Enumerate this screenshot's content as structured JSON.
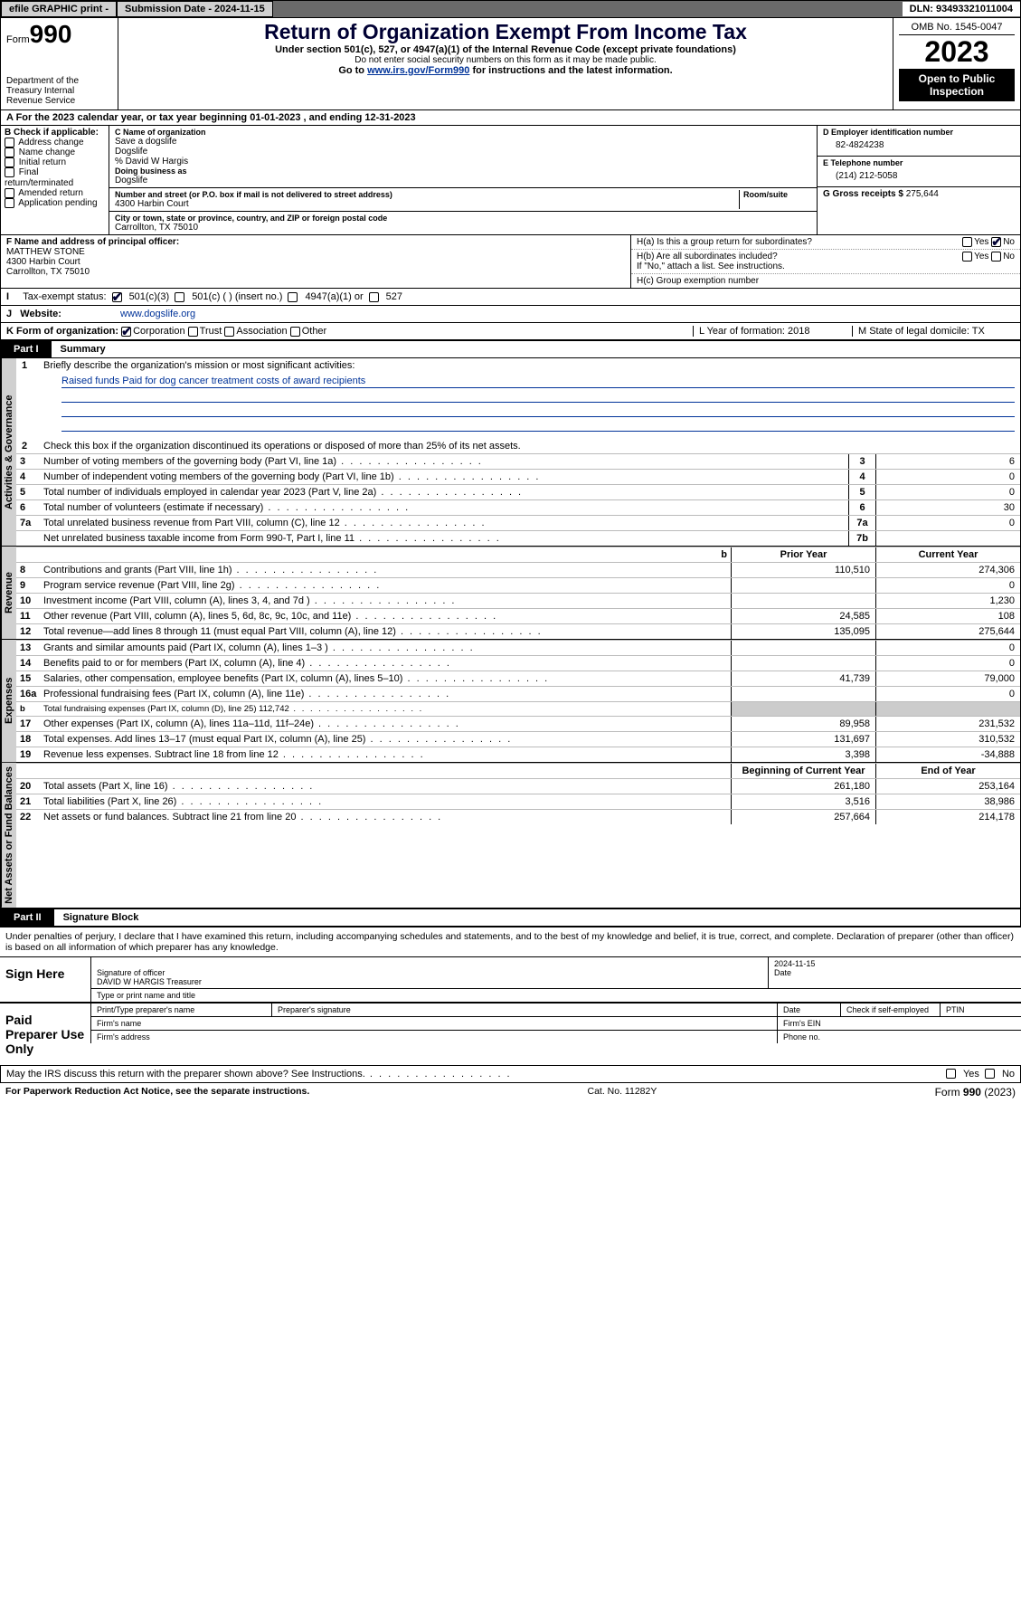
{
  "top": {
    "efile": "efile GRAPHIC print -",
    "submission": "Submission Date - 2024-11-15",
    "dln": "DLN: 93493321011004"
  },
  "header": {
    "form_prefix": "Form",
    "form_no": "990",
    "title": "Return of Organization Exempt From Income Tax",
    "subtitle": "Under section 501(c), 527, or 4947(a)(1) of the Internal Revenue Code (except private foundations)",
    "ssn_note": "Do not enter social security numbers on this form as it may be made public.",
    "goto_pre": "Go to ",
    "goto_link": "www.irs.gov/Form990",
    "goto_post": " for instructions and the latest information.",
    "dept": "Department of the Treasury Internal Revenue Service",
    "omb": "OMB No. 1545-0047",
    "year": "2023",
    "open": "Open to Public Inspection"
  },
  "A": {
    "prefix": "A For the 2023 calendar year, or tax year beginning ",
    "start": "01-01-2023",
    "mid": " , and ending ",
    "end": "12-31-2023"
  },
  "B": {
    "lbl": "B Check if applicable:",
    "opts": [
      "Address change",
      "Name change",
      "Initial return",
      "Final return/terminated",
      "Amended return",
      "Application pending"
    ]
  },
  "C": {
    "name_lbl": "C Name of organization",
    "name1": "Save a dogslife",
    "name2": "Dogslife",
    "care": "% David W Hargis",
    "dba_lbl": "Doing business as",
    "dba": "Dogslife",
    "street_lbl": "Number and street (or P.O. box if mail is not delivered to street address)",
    "street": "4300 Harbin Court",
    "room_lbl": "Room/suite",
    "city_lbl": "City or town, state or province, country, and ZIP or foreign postal code",
    "city": "Carrollton, TX  75010"
  },
  "D": {
    "lbl": "D Employer identification number",
    "val": "82-4824238"
  },
  "E": {
    "lbl": "E Telephone number",
    "val": "(214) 212-5058"
  },
  "G": {
    "lbl": "G Gross receipts $ ",
    "val": "275,644"
  },
  "F": {
    "lbl": "F  Name and address of principal officer:",
    "name": "MATTHEW STONE",
    "street": "4300 Harbin Court",
    "city": "Carrollton, TX  75010"
  },
  "H": {
    "a": "H(a)  Is this a group return for subordinates?",
    "b": "H(b)  Are all subordinates included?",
    "b_note": "If \"No,\" attach a list. See instructions.",
    "c": "H(c)  Group exemption number",
    "yes": "Yes",
    "no": "No"
  },
  "I": {
    "lbl": "Tax-exempt status:",
    "c3": "501(c)(3)",
    "c": "501(c) (  ) (insert no.)",
    "a1": "4947(a)(1) or",
    "s527": "527"
  },
  "J": {
    "lbl": "Website:",
    "val": "www.dogslife.org"
  },
  "K": {
    "lbl": "K Form of organization:",
    "corp": "Corporation",
    "trust": "Trust",
    "assoc": "Association",
    "other": "Other"
  },
  "L": {
    "text": "L Year of formation: 2018"
  },
  "M": {
    "text": "M State of legal domicile: TX"
  },
  "part1": {
    "label": "Part I",
    "title": "Summary"
  },
  "p1": {
    "l1_lbl": "Briefly describe the organization's mission or most significant activities:",
    "l1_val": "Raised funds Paid for dog cancer treatment costs of award recipients",
    "l2": "Check this box      if the organization discontinued its operations or disposed of more than 25% of its net assets.",
    "side_ag": "Activities & Governance",
    "side_rev": "Revenue",
    "side_exp": "Expenses",
    "side_na": "Net Assets or Fund Balances",
    "rows_gov": [
      {
        "n": "3",
        "d": "Number of voting members of the governing body (Part VI, line 1a)",
        "box": "3",
        "v": "6"
      },
      {
        "n": "4",
        "d": "Number of independent voting members of the governing body (Part VI, line 1b)",
        "box": "4",
        "v": "0"
      },
      {
        "n": "5",
        "d": "Total number of individuals employed in calendar year 2023 (Part V, line 2a)",
        "box": "5",
        "v": "0"
      },
      {
        "n": "6",
        "d": "Total number of volunteers (estimate if necessary)",
        "box": "6",
        "v": "30"
      },
      {
        "n": "7a",
        "d": "Total unrelated business revenue from Part VIII, column (C), line 12",
        "box": "7a",
        "v": "0"
      },
      {
        "n": "",
        "d": "Net unrelated business taxable income from Form 990-T, Part I, line 11",
        "box": "7b",
        "v": ""
      }
    ],
    "hdr_prior": "Prior Year",
    "hdr_curr": "Current Year",
    "rows_rev": [
      {
        "n": "8",
        "d": "Contributions and grants (Part VIII, line 1h)",
        "p": "110,510",
        "c": "274,306"
      },
      {
        "n": "9",
        "d": "Program service revenue (Part VIII, line 2g)",
        "p": "",
        "c": "0"
      },
      {
        "n": "10",
        "d": "Investment income (Part VIII, column (A), lines 3, 4, and 7d )",
        "p": "",
        "c": "1,230"
      },
      {
        "n": "11",
        "d": "Other revenue (Part VIII, column (A), lines 5, 6d, 8c, 9c, 10c, and 11e)",
        "p": "24,585",
        "c": "108"
      },
      {
        "n": "12",
        "d": "Total revenue—add lines 8 through 11 (must equal Part VIII, column (A), line 12)",
        "p": "135,095",
        "c": "275,644"
      }
    ],
    "rows_exp": [
      {
        "n": "13",
        "d": "Grants and similar amounts paid (Part IX, column (A), lines 1–3 )",
        "p": "",
        "c": "0"
      },
      {
        "n": "14",
        "d": "Benefits paid to or for members (Part IX, column (A), line 4)",
        "p": "",
        "c": "0"
      },
      {
        "n": "15",
        "d": "Salaries, other compensation, employee benefits (Part IX, column (A), lines 5–10)",
        "p": "41,739",
        "c": "79,000"
      },
      {
        "n": "16a",
        "d": "Professional fundraising fees (Part IX, column (A), line 11e)",
        "p": "",
        "c": "0"
      },
      {
        "n": "b",
        "d": "Total fundraising expenses (Part IX, column (D), line 25) 112,742",
        "p": "",
        "c": "",
        "shade": true,
        "small": true
      },
      {
        "n": "17",
        "d": "Other expenses (Part IX, column (A), lines 11a–11d, 11f–24e)",
        "p": "89,958",
        "c": "231,532"
      },
      {
        "n": "18",
        "d": "Total expenses. Add lines 13–17 (must equal Part IX, column (A), line 25)",
        "p": "131,697",
        "c": "310,532"
      },
      {
        "n": "19",
        "d": "Revenue less expenses. Subtract line 18 from line 12",
        "p": "3,398",
        "c": "-34,888"
      }
    ],
    "hdr_beg": "Beginning of Current Year",
    "hdr_end": "End of Year",
    "rows_na": [
      {
        "n": "20",
        "d": "Total assets (Part X, line 16)",
        "p": "261,180",
        "c": "253,164"
      },
      {
        "n": "21",
        "d": "Total liabilities (Part X, line 26)",
        "p": "3,516",
        "c": "38,986"
      },
      {
        "n": "22",
        "d": "Net assets or fund balances. Subtract line 21 from line 20",
        "p": "257,664",
        "c": "214,178"
      }
    ]
  },
  "part2": {
    "label": "Part II",
    "title": "Signature Block"
  },
  "sig": {
    "declare": "Under penalties of perjury, I declare that I have examined this return, including accompanying schedules and statements, and to the best of my knowledge and belief, it is true, correct, and complete. Declaration of preparer (other than officer) is based on all information of which preparer has any knowledge.",
    "sign_here": "Sign Here",
    "sig_officer_date": "2024-11-15",
    "sig_officer_lbl": "Signature of officer",
    "officer_name": "DAVID W HARGIS  Treasurer",
    "type_lbl": "Type or print name and title",
    "date_lbl": "Date",
    "paid": "Paid Preparer Use Only",
    "pp_name": "Print/Type preparer's name",
    "pp_sig": "Preparer's signature",
    "pp_date": "Date",
    "pp_self": "Check        if self-employed",
    "pp_ptin": "PTIN",
    "firm_name": "Firm's name",
    "firm_ein": "Firm's EIN",
    "firm_addr": "Firm's address",
    "phone": "Phone no.",
    "discuss": "May the IRS discuss this return with the preparer shown above? See Instructions.",
    "yes": "Yes",
    "no": "No"
  },
  "foot": {
    "pra": "For Paperwork Reduction Act Notice, see the separate instructions.",
    "cat": "Cat. No. 11282Y",
    "form": "Form 990 (2023)"
  }
}
